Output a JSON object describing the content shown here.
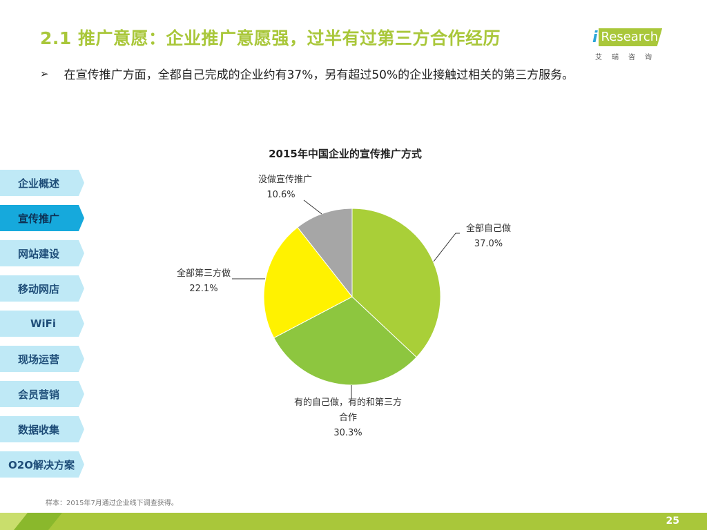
{
  "header": {
    "title": "2.1 推广意愿：企业推广意愿强，过半有过第三方合作经历",
    "logo_text": "Research",
    "logo_sub": "艾瑞咨询"
  },
  "bullet": "在宣传推广方面，全都自己完成的企业约有37%，另有超过50%的企业接触过相关的第三方服务。",
  "nav": {
    "items": [
      "企业概述",
      "宣传推广",
      "网站建设",
      "移动网店",
      "WiFi",
      "现场运营",
      "会员营销",
      "数据收集",
      "O2O解决方案"
    ],
    "active_index": 1
  },
  "chart_data": {
    "type": "pie",
    "title": "2015年中国企业的宣传推广方式",
    "slices": [
      {
        "label": "全部自己做",
        "value": 37.0,
        "display": "37.0%",
        "color": "#a9cf38"
      },
      {
        "label": "有的自己做，有的和第三方合作",
        "label_line1": "有的自己做，有的和第三方",
        "label_line2": "合作",
        "value": 30.3,
        "display": "30.3%",
        "color": "#8dc63f"
      },
      {
        "label": "全部第三方做",
        "value": 22.1,
        "display": "22.1%",
        "color": "#fff200"
      },
      {
        "label": "没做宣传推广",
        "value": 10.6,
        "display": "10.6%",
        "color": "#a6a6a6"
      }
    ]
  },
  "footnote": "样本：2015年7月通过企业线下调查获得。",
  "page_number": "25",
  "colors": {
    "accent_green": "#a9c73a",
    "nav_light": "#bfe9f6",
    "nav_active": "#16a9dc"
  }
}
